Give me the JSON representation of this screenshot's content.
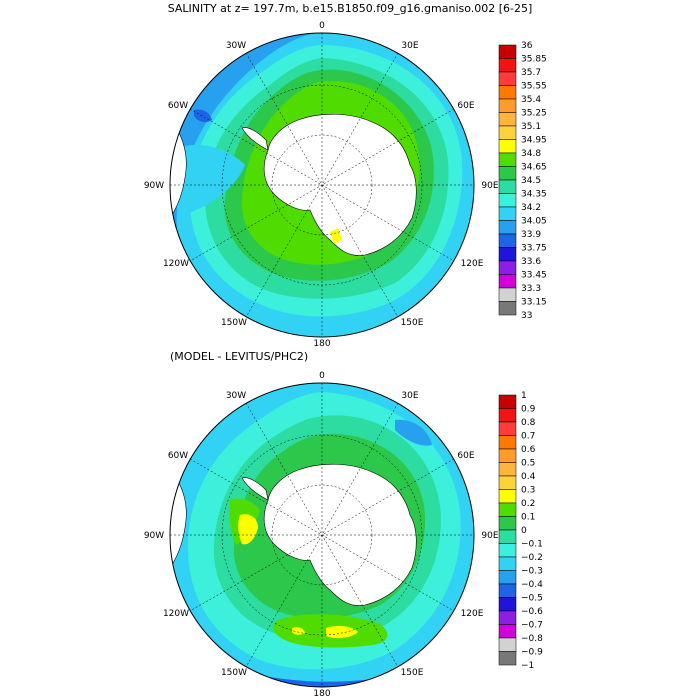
{
  "top_panel": {
    "title": "SALINITY at z=  197.7m, b.e15.B1850.f09_g16.gmaniso.002 [6-25]",
    "lon_labels": [
      "0",
      "30E",
      "60E",
      "90E",
      "120E",
      "150E",
      "180",
      "150W",
      "120W",
      "90W",
      "60W",
      "30W"
    ],
    "colorbar": {
      "labels": [
        "36",
        "35.85",
        "35.7",
        "35.55",
        "35.4",
        "35.25",
        "35.1",
        "34.95",
        "34.8",
        "34.65",
        "34.5",
        "34.35",
        "34.2",
        "34.05",
        "33.9",
        "33.75",
        "33.6",
        "33.45",
        "33.3",
        "33.15",
        "33"
      ],
      "colors": [
        "#c80000",
        "#f01414",
        "#ff3c3c",
        "#ff7800",
        "#ff9b28",
        "#ffb43c",
        "#ffd23c",
        "#ffff00",
        "#50dc00",
        "#2cc84c",
        "#2cdca0",
        "#3cf0dc",
        "#32d2f5",
        "#28a0f0",
        "#1e64e6",
        "#1e14dc",
        "#8c1ee6",
        "#d200dc",
        "#d2d2d2",
        "#787878"
      ]
    }
  },
  "bottom_panel": {
    "title": "(MODEL - LEVITUS/PHC2)",
    "lon_labels": [
      "0",
      "30E",
      "60E",
      "90E",
      "120E",
      "150E",
      "180",
      "150W",
      "120W",
      "90W",
      "60W",
      "30W"
    ],
    "colorbar": {
      "labels": [
        "1",
        "0.9",
        "0.8",
        "0.7",
        "0.6",
        "0.5",
        "0.4",
        "0.3",
        "0.2",
        "0.1",
        "0",
        "−0.1",
        "−0.2",
        "−0.3",
        "−0.4",
        "−0.5",
        "−0.6",
        "−0.7",
        "−0.8",
        "−0.9",
        "−1"
      ],
      "colors": [
        "#c80000",
        "#f01414",
        "#ff3c3c",
        "#ff7800",
        "#ff9b28",
        "#ffb43c",
        "#ffd23c",
        "#ffff00",
        "#50dc00",
        "#2cc84c",
        "#2cdca0",
        "#3cf0dc",
        "#32d2f5",
        "#28a0f0",
        "#1e64e6",
        "#1e14dc",
        "#8c1ee6",
        "#d200dc",
        "#d2d2d2",
        "#787878"
      ]
    }
  },
  "colors": {
    "land": "#ffffff",
    "coast": "#000000",
    "grid": "#000000"
  }
}
